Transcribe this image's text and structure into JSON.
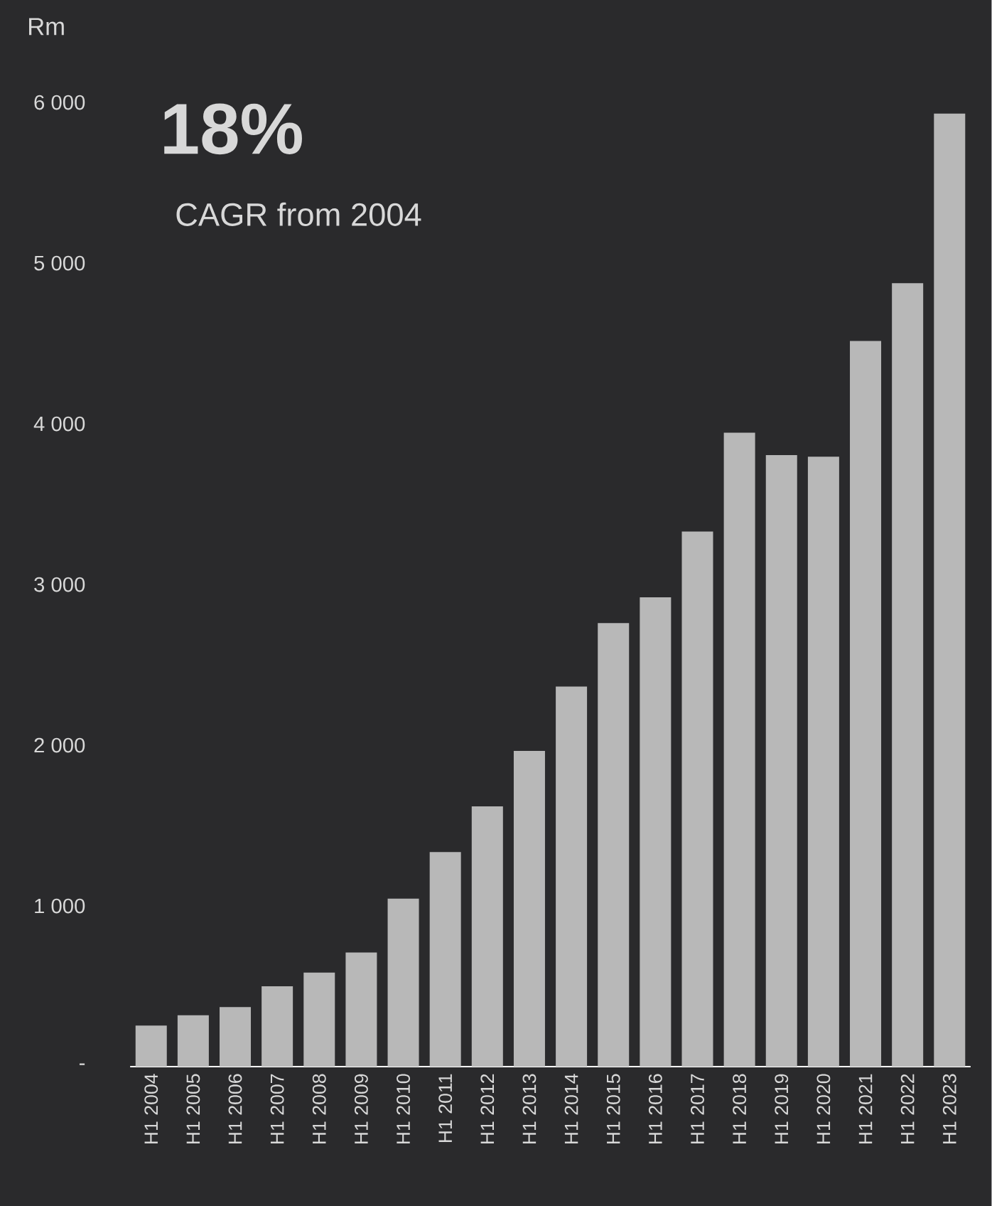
{
  "chart_data": {
    "type": "bar",
    "ylabel": "Rm",
    "annotations": [
      "18%",
      "CAGR from 2004"
    ],
    "categories": [
      "H1 2004",
      "H1 2005",
      "H1 2006",
      "H1 2007",
      "H1 2008",
      "H1 2009",
      "H1 2010",
      "H1 2011",
      "H1 2012",
      "H1 2013",
      "H1 2014",
      "H1 2015",
      "H1 2016",
      "H1 2017",
      "H1 2018",
      "H1 2019",
      "H1 2020",
      "H1 2021",
      "H1 2022",
      "H1 2023"
    ],
    "values": [
      255,
      320,
      370,
      500,
      585,
      710,
      1045,
      1335,
      1620,
      1965,
      2365,
      2760,
      2920,
      3330,
      3945,
      3805,
      3795,
      4515,
      4875,
      5930
    ],
    "color": "#b8b8b8",
    "ylim": [
      0,
      6000
    ],
    "yticks": [
      {
        "value": 0,
        "label": "-"
      },
      {
        "value": 1000,
        "label": "1 000"
      },
      {
        "value": 2000,
        "label": "2 000"
      },
      {
        "value": 3000,
        "label": "3 000"
      },
      {
        "value": 4000,
        "label": "4 000"
      },
      {
        "value": 5000,
        "label": "5 000"
      },
      {
        "value": 6000,
        "label": "6 000"
      }
    ]
  }
}
